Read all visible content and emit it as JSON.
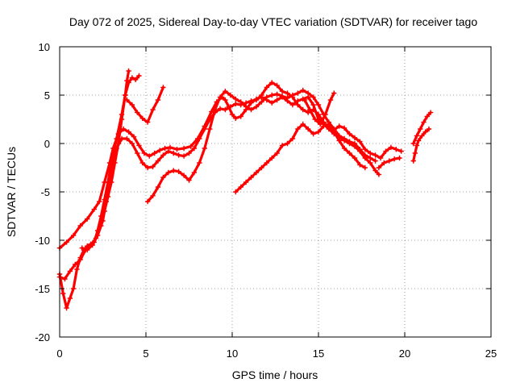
{
  "chart_data": {
    "type": "scatter",
    "title": "Day 072 of 2025, Sidereal Day-to-day VTEC variation (SDTVAR) for receiver tago",
    "xlabel": "GPS time / hours",
    "ylabel": "SDTVAR / TECUs",
    "xlim": [
      0,
      25
    ],
    "ylim": [
      -20,
      10
    ],
    "xticks": [
      "0",
      "5",
      "10",
      "15",
      "20",
      "25"
    ],
    "yticks": [
      "-20",
      "-15",
      "-10",
      "-5",
      "0",
      "5",
      "10"
    ],
    "grid": true,
    "legend": "none",
    "marker": "plus",
    "series_color": "#ff0000",
    "series": [
      {
        "points": [
          [
            0,
            -10.8
          ],
          [
            0.4,
            -10.2
          ],
          [
            0.8,
            -9.5
          ],
          [
            1.2,
            -8.5
          ],
          [
            1.6,
            -7.8
          ],
          [
            2.0,
            -6.8
          ],
          [
            2.3,
            -6.0
          ],
          [
            2.6,
            -4.0
          ],
          [
            2.9,
            -2.0
          ],
          [
            3.1,
            -0.5
          ],
          [
            3.4,
            1.0
          ],
          [
            3.7,
            1.5
          ],
          [
            4.0,
            1.2
          ],
          [
            4.3,
            0.7
          ],
          [
            4.6,
            -0.2
          ],
          [
            4.9,
            -1.0
          ],
          [
            5.2,
            -1.3
          ],
          [
            5.5,
            -1.0
          ],
          [
            5.8,
            -0.7
          ],
          [
            6.1,
            -0.5
          ],
          [
            6.4,
            -0.4
          ],
          [
            6.8,
            -0.6
          ],
          [
            7.2,
            -0.5
          ],
          [
            7.6,
            -0.3
          ],
          [
            8.0,
            0.5
          ],
          [
            8.4,
            1.8
          ],
          [
            8.8,
            3.3
          ],
          [
            9.1,
            4.3
          ],
          [
            9.4,
            4.8
          ],
          [
            9.6,
            4.5
          ],
          [
            9.8,
            3.8
          ],
          [
            10.0,
            3.0
          ],
          [
            10.2,
            2.6
          ],
          [
            10.5,
            2.8
          ],
          [
            10.8,
            3.5
          ],
          [
            11.1,
            4.2
          ],
          [
            11.4,
            4.6
          ],
          [
            11.7,
            4.8
          ],
          [
            12.0,
            4.5
          ],
          [
            12.3,
            4.2
          ],
          [
            12.6,
            4.5
          ],
          [
            12.9,
            4.8
          ],
          [
            13.2,
            4.4
          ],
          [
            13.5,
            4.0
          ],
          [
            13.8,
            4.4
          ],
          [
            14.1,
            4.6
          ],
          [
            14.4,
            4.8
          ],
          [
            14.7,
            4.0
          ],
          [
            15.0,
            2.5
          ],
          [
            15.3,
            2.0
          ],
          [
            15.6,
            1.5
          ],
          [
            15.9,
            1.0
          ],
          [
            16.2,
            0.6
          ],
          [
            16.5,
            0.3
          ],
          [
            16.8,
            0.0
          ],
          [
            17.1,
            -0.3
          ],
          [
            17.4,
            -0.8
          ],
          [
            17.7,
            -1.5
          ],
          [
            18.0,
            -2.0
          ],
          [
            18.3,
            -2.8
          ],
          [
            18.5,
            -3.2
          ]
        ]
      },
      {
        "points": [
          [
            0,
            -13.8
          ],
          [
            0.3,
            -14.0
          ],
          [
            0.6,
            -13.2
          ],
          [
            0.9,
            -12.5
          ],
          [
            1.2,
            -12.0
          ],
          [
            1.5,
            -11.0
          ],
          [
            1.8,
            -10.5
          ],
          [
            2.1,
            -9.8
          ],
          [
            2.4,
            -8.5
          ],
          [
            2.6,
            -7.0
          ],
          [
            2.8,
            -5.5
          ],
          [
            3.0,
            -4.0
          ],
          [
            3.2,
            -2.0
          ],
          [
            3.4,
            0.0
          ],
          [
            3.6,
            2.5
          ],
          [
            3.8,
            5.0
          ],
          [
            3.9,
            6.5
          ],
          [
            4.0,
            7.5
          ]
        ]
      },
      {
        "points": [
          [
            0,
            -13.5
          ],
          [
            0.2,
            -15.5
          ],
          [
            0.4,
            -17.0
          ],
          [
            0.6,
            -16.0
          ],
          [
            0.8,
            -15.0
          ],
          [
            1.0,
            -13.0
          ],
          [
            1.2,
            -11.8
          ],
          [
            1.4,
            -11.0
          ],
          [
            1.6,
            -10.6
          ],
          [
            1.8,
            -10.4
          ],
          [
            2.0,
            -10.2
          ],
          [
            2.2,
            -9.0
          ],
          [
            2.4,
            -7.5
          ],
          [
            2.6,
            -5.8
          ],
          [
            2.8,
            -4.0
          ],
          [
            3.0,
            -2.0
          ],
          [
            3.3,
            0.5
          ],
          [
            3.6,
            3.0
          ],
          [
            3.8,
            5.0
          ],
          [
            4.0,
            6.3
          ],
          [
            4.2,
            6.8
          ],
          [
            4.4,
            6.6
          ],
          [
            4.6,
            7.0
          ]
        ]
      },
      {
        "points": [
          [
            1.3,
            -10.8
          ],
          [
            1.6,
            -11.0
          ],
          [
            1.9,
            -10.5
          ],
          [
            2.2,
            -9.5
          ],
          [
            2.5,
            -8.0
          ],
          [
            2.7,
            -6.0
          ],
          [
            2.9,
            -4.0
          ],
          [
            3.1,
            -2.0
          ],
          [
            3.3,
            -0.5
          ],
          [
            3.6,
            0.5
          ],
          [
            3.9,
            0.5
          ],
          [
            4.2,
            0.0
          ],
          [
            4.5,
            -1.0
          ],
          [
            4.8,
            -2.0
          ],
          [
            5.1,
            -2.5
          ],
          [
            5.4,
            -2.4
          ],
          [
            5.7,
            -1.8
          ],
          [
            6.0,
            -1.2
          ],
          [
            6.3,
            -0.8
          ],
          [
            6.6,
            -1.0
          ],
          [
            6.9,
            -1.2
          ],
          [
            7.2,
            -1.3
          ],
          [
            7.5,
            -1.0
          ],
          [
            7.8,
            -0.5
          ],
          [
            8.1,
            0.5
          ],
          [
            8.4,
            1.5
          ],
          [
            8.7,
            2.5
          ],
          [
            9.0,
            3.2
          ],
          [
            9.3,
            3.6
          ],
          [
            9.6,
            3.5
          ],
          [
            9.9,
            3.8
          ],
          [
            10.2,
            4.1
          ],
          [
            10.5,
            4.0
          ],
          [
            10.8,
            4.2
          ],
          [
            11.1,
            4.4
          ],
          [
            11.4,
            4.5
          ],
          [
            11.7,
            5.0
          ],
          [
            12.0,
            5.8
          ],
          [
            12.3,
            6.3
          ],
          [
            12.6,
            6.0
          ],
          [
            12.9,
            5.4
          ],
          [
            13.2,
            5.2
          ],
          [
            13.5,
            4.8
          ],
          [
            13.8,
            4.0
          ],
          [
            14.1,
            3.5
          ],
          [
            14.4,
            3.2
          ],
          [
            14.7,
            3.5
          ],
          [
            15.0,
            3.0
          ],
          [
            15.3,
            2.2
          ],
          [
            15.6,
            1.6
          ],
          [
            15.9,
            1.4
          ],
          [
            16.2,
            1.8
          ],
          [
            16.5,
            1.6
          ],
          [
            16.8,
            1.0
          ],
          [
            17.1,
            0.6
          ],
          [
            17.4,
            0.2
          ],
          [
            17.7,
            -0.6
          ],
          [
            18.0,
            -1.0
          ],
          [
            18.3,
            -1.2
          ],
          [
            18.6,
            -1.5
          ],
          [
            18.9,
            -0.8
          ],
          [
            19.2,
            -0.4
          ],
          [
            19.5,
            -0.6
          ],
          [
            19.8,
            -0.8
          ]
        ]
      },
      {
        "points": [
          [
            3.9,
            4.5
          ],
          [
            4.2,
            4.0
          ],
          [
            4.5,
            3.2
          ],
          [
            4.8,
            2.6
          ],
          [
            5.1,
            2.2
          ],
          [
            5.4,
            3.5
          ],
          [
            5.7,
            4.5
          ],
          [
            6.0,
            5.8
          ]
        ]
      },
      {
        "points": [
          [
            5.1,
            -6.0
          ],
          [
            5.4,
            -5.4
          ],
          [
            5.7,
            -4.5
          ],
          [
            6.0,
            -3.5
          ],
          [
            6.3,
            -3.0
          ],
          [
            6.6,
            -2.8
          ],
          [
            6.9,
            -2.9
          ],
          [
            7.2,
            -3.3
          ],
          [
            7.5,
            -3.8
          ],
          [
            7.8,
            -3.0
          ],
          [
            8.1,
            -2.0
          ],
          [
            8.4,
            -0.5
          ],
          [
            8.7,
            1.5
          ],
          [
            9.0,
            3.5
          ],
          [
            9.3,
            4.8
          ],
          [
            9.6,
            5.4
          ],
          [
            9.9,
            5.0
          ],
          [
            10.2,
            4.6
          ],
          [
            10.5,
            4.3
          ],
          [
            10.8,
            3.8
          ],
          [
            11.1,
            3.5
          ],
          [
            11.4,
            3.8
          ],
          [
            11.7,
            4.3
          ],
          [
            12.0,
            4.8
          ],
          [
            12.3,
            5.0
          ],
          [
            12.6,
            5.1
          ],
          [
            12.9,
            4.9
          ],
          [
            13.2,
            4.7
          ],
          [
            13.5,
            5.0
          ],
          [
            13.8,
            5.2
          ],
          [
            14.1,
            5.5
          ],
          [
            14.4,
            5.2
          ],
          [
            14.7,
            4.8
          ],
          [
            15.0,
            4.0
          ],
          [
            15.3,
            3.0
          ],
          [
            15.6,
            2.2
          ],
          [
            15.9,
            1.5
          ],
          [
            16.2,
            0.8
          ],
          [
            16.5,
            0.5
          ],
          [
            16.8,
            0.2
          ],
          [
            17.1,
            0.0
          ],
          [
            17.4,
            -0.6
          ],
          [
            17.7,
            -1.2
          ],
          [
            18.0,
            -1.5
          ],
          [
            18.3,
            -1.8
          ]
        ]
      },
      {
        "points": [
          [
            10.2,
            -5.0
          ],
          [
            10.5,
            -4.5
          ],
          [
            10.8,
            -4.0
          ],
          [
            11.1,
            -3.5
          ],
          [
            11.4,
            -3.0
          ],
          [
            11.7,
            -2.5
          ],
          [
            12.0,
            -2.0
          ],
          [
            12.3,
            -1.5
          ],
          [
            12.6,
            -1.0
          ],
          [
            12.9,
            -0.2
          ],
          [
            13.2,
            0.0
          ],
          [
            13.5,
            0.5
          ],
          [
            13.8,
            1.5
          ],
          [
            14.1,
            2.0
          ],
          [
            14.4,
            1.5
          ],
          [
            14.7,
            1.0
          ],
          [
            15.0,
            1.2
          ],
          [
            15.3,
            1.8
          ],
          [
            15.6,
            2.0
          ],
          [
            15.9,
            1.2
          ],
          [
            16.2,
            0.3
          ],
          [
            16.5,
            -0.5
          ],
          [
            16.8,
            -1.0
          ],
          [
            17.1,
            -1.5
          ],
          [
            17.4,
            -2.2
          ],
          [
            17.7,
            -2.5
          ]
        ]
      },
      {
        "points": [
          [
            14.2,
            4.5
          ],
          [
            14.5,
            3.5
          ],
          [
            14.8,
            2.5
          ],
          [
            15.1,
            2.0
          ],
          [
            15.4,
            3.0
          ],
          [
            15.7,
            4.5
          ],
          [
            15.9,
            5.2
          ]
        ]
      },
      {
        "points": [
          [
            18.5,
            -2.5
          ],
          [
            18.8,
            -2.0
          ],
          [
            19.1,
            -1.8
          ],
          [
            19.4,
            -1.6
          ],
          [
            19.7,
            -1.5
          ]
        ]
      },
      {
        "points": [
          [
            20.5,
            -1.8
          ],
          [
            20.6,
            -1.0
          ],
          [
            20.7,
            -0.2
          ],
          [
            20.8,
            0.3
          ],
          [
            21.0,
            0.8
          ],
          [
            21.2,
            1.2
          ],
          [
            21.4,
            1.5
          ]
        ]
      },
      {
        "points": [
          [
            20.5,
            0.0
          ],
          [
            20.7,
            0.8
          ],
          [
            20.9,
            1.5
          ],
          [
            21.1,
            2.2
          ],
          [
            21.3,
            2.8
          ],
          [
            21.5,
            3.2
          ]
        ]
      }
    ]
  }
}
